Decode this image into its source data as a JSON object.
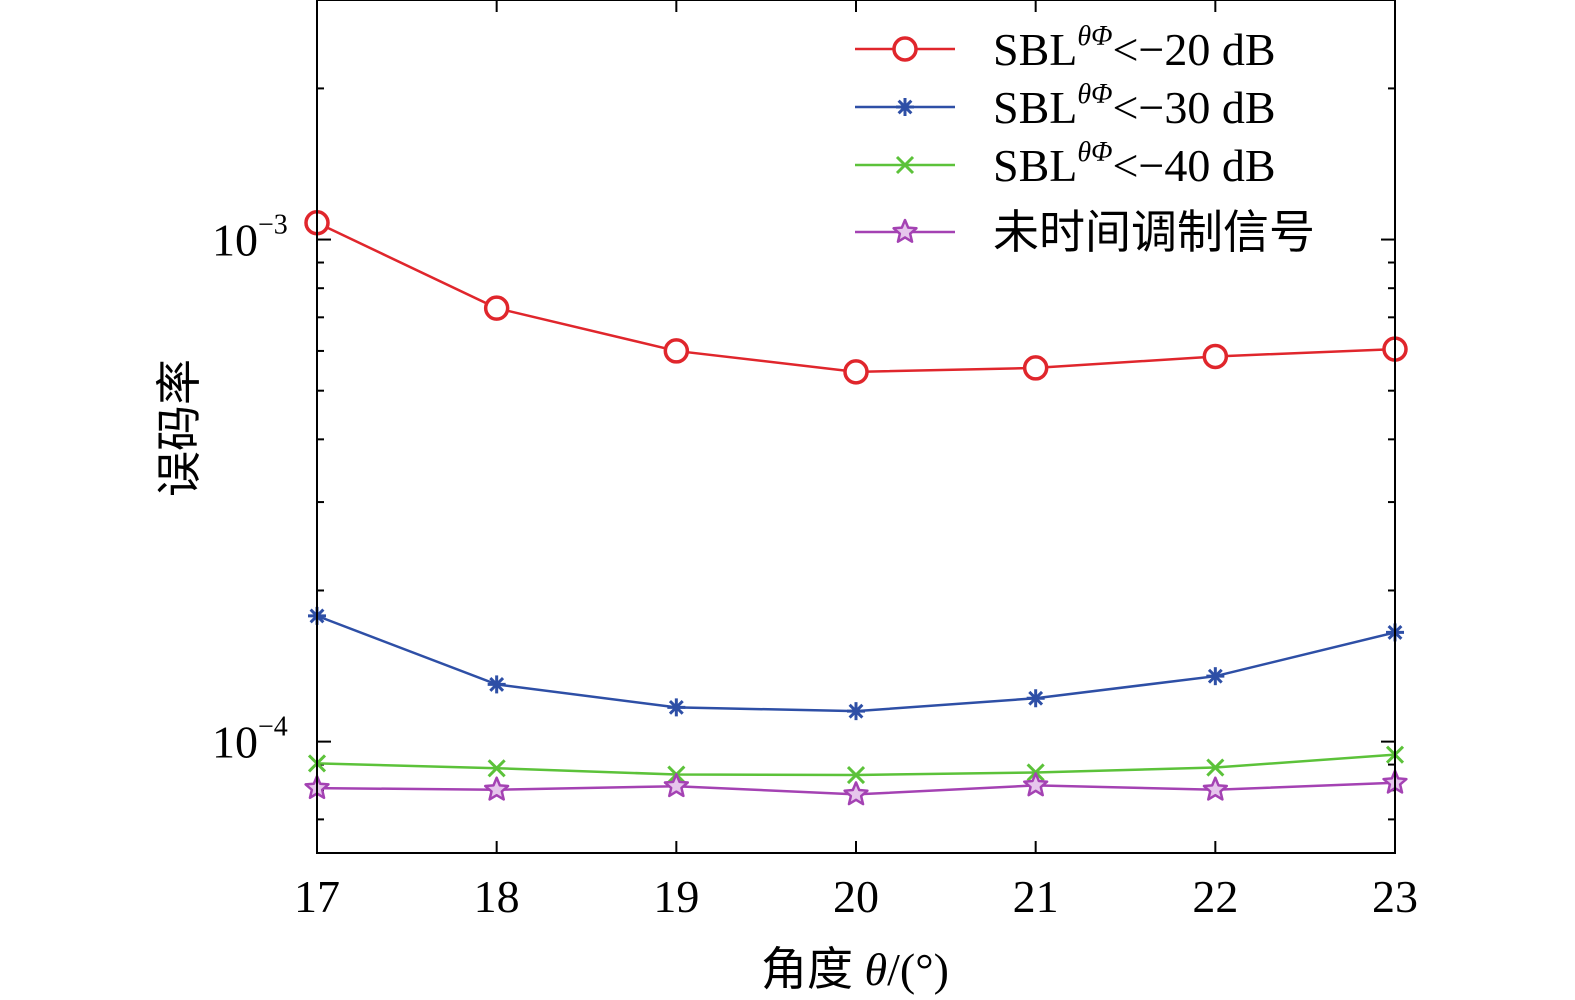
{
  "chart_data": {
    "type": "line",
    "x": [
      17,
      18,
      19,
      20,
      21,
      22,
      23
    ],
    "xlim": [
      17,
      23
    ],
    "ylim": [
      6e-05,
      0.003
    ],
    "yscale": "log",
    "grid": false,
    "legend_position": "top-right",
    "xlabel": {
      "main": "角度 ",
      "symbol": "θ",
      "unit": "/(°)"
    },
    "ylabel": "误码率",
    "x_ticks": [
      "17",
      "18",
      "19",
      "20",
      "21",
      "22",
      "23"
    ],
    "y_major_ticks": [
      {
        "value": 0.001,
        "base": "10",
        "exp": "−3"
      },
      {
        "value": 0.0001,
        "base": "10",
        "exp": "−4"
      }
    ],
    "series": [
      {
        "name_main": "SBL",
        "name_sup": "θΦ",
        "name_rest": "<−20 dB",
        "color": "#e0262c",
        "marker": "circle",
        "values": [
          0.00108,
          0.00073,
          0.0006,
          0.000545,
          0.000555,
          0.000585,
          0.000605
        ]
      },
      {
        "name_main": "SBL",
        "name_sup": "θΦ",
        "name_rest": "<−30 dB",
        "color": "#2e4fa6",
        "marker": "asterisk",
        "values": [
          0.000178,
          0.00013,
          0.000117,
          0.000115,
          0.000122,
          0.000135,
          0.000165
        ]
      },
      {
        "name_main": "SBL",
        "name_sup": "θΦ",
        "name_rest": "<−40 dB",
        "color": "#5cc23a",
        "marker": "x",
        "values": [
          9.05e-05,
          8.85e-05,
          8.6e-05,
          8.58e-05,
          8.68e-05,
          8.88e-05,
          9.42e-05
        ]
      },
      {
        "name_main": "未时间调制信号",
        "name_sup": "",
        "name_rest": "",
        "color": "#a442b3",
        "marker": "star",
        "values": [
          8.08e-05,
          8.02e-05,
          8.15e-05,
          7.85e-05,
          8.18e-05,
          8.02e-05,
          8.28e-05
        ]
      }
    ]
  }
}
